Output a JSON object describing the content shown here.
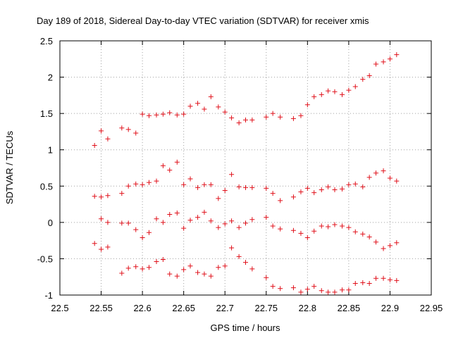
{
  "chart_data": {
    "type": "scatter",
    "title": "Day 189 of 2018, Sidereal Day-to-day VTEC variation (SDTVAR) for receiver xmis",
    "xlabel": "GPS time / hours",
    "ylabel": "SDTVAR / TECUs",
    "xlim": [
      22.5,
      22.95
    ],
    "ylim": [
      -1,
      2.5
    ],
    "xticks": [
      "22.5",
      "22.55",
      "22.6",
      "22.65",
      "22.7",
      "22.75",
      "22.8",
      "22.85",
      "22.9",
      "22.95"
    ],
    "yticks": [
      "-1",
      "-0.5",
      "0",
      "0.5",
      "1",
      "1.5",
      "2",
      "2.5"
    ],
    "grid": true,
    "marker": "+",
    "color": "#e0101a",
    "series": [
      {
        "name": "upper",
        "x": [
          22.542,
          22.55,
          22.558,
          22.575,
          22.583,
          22.592,
          22.6,
          22.608,
          22.617,
          22.625,
          22.633,
          22.642,
          22.65,
          22.658,
          22.667,
          22.675,
          22.683,
          22.692,
          22.7,
          22.708,
          22.717,
          22.725,
          22.733,
          22.75,
          22.758,
          22.767,
          22.783,
          22.792,
          22.8,
          22.808,
          22.817,
          22.825,
          22.833,
          22.842,
          22.85,
          22.858,
          22.867,
          22.875,
          22.883,
          22.892,
          22.9,
          22.908
        ],
        "y": [
          1.06,
          1.26,
          1.15,
          1.3,
          1.28,
          1.23,
          1.49,
          1.47,
          1.48,
          1.49,
          1.51,
          1.48,
          1.49,
          1.6,
          1.64,
          1.56,
          1.73,
          1.59,
          1.52,
          1.44,
          1.37,
          1.41,
          1.41,
          1.45,
          1.5,
          1.45,
          1.43,
          1.47,
          1.62,
          1.73,
          1.76,
          1.81,
          1.8,
          1.76,
          1.82,
          1.87,
          1.97,
          2.02,
          2.18,
          2.21,
          2.25,
          2.31
        ]
      },
      {
        "name": "upper-middle",
        "x": [
          22.542,
          22.55,
          22.558,
          22.575,
          22.583,
          22.592,
          22.6,
          22.608,
          22.617,
          22.625,
          22.633,
          22.642,
          22.65,
          22.658,
          22.667,
          22.675,
          22.683,
          22.692,
          22.7,
          22.708,
          22.717,
          22.725,
          22.733,
          22.75,
          22.758,
          22.767,
          22.783,
          22.792,
          22.8,
          22.808,
          22.817,
          22.825,
          22.833,
          22.842,
          22.85,
          22.858,
          22.867,
          22.875,
          22.883,
          22.892,
          22.9,
          22.908
        ],
        "y": [
          0.36,
          0.35,
          0.37,
          0.4,
          0.5,
          0.53,
          0.52,
          0.55,
          0.57,
          0.78,
          0.72,
          0.83,
          0.52,
          0.6,
          0.48,
          0.52,
          0.52,
          0.33,
          0.44,
          0.66,
          0.49,
          0.48,
          0.48,
          0.47,
          0.4,
          0.3,
          0.35,
          0.42,
          0.47,
          0.41,
          0.45,
          0.49,
          0.45,
          0.46,
          0.52,
          0.53,
          0.49,
          0.62,
          0.68,
          0.71,
          0.61,
          0.57
        ]
      },
      {
        "name": "lower-middle",
        "x": [
          22.542,
          22.55,
          22.558,
          22.575,
          22.583,
          22.592,
          22.6,
          22.608,
          22.617,
          22.625,
          22.633,
          22.642,
          22.65,
          22.658,
          22.667,
          22.675,
          22.683,
          22.692,
          22.7,
          22.708,
          22.717,
          22.725,
          22.733,
          22.75,
          22.758,
          22.767,
          22.783,
          22.792,
          22.8,
          22.808,
          22.817,
          22.825,
          22.833,
          22.842,
          22.85,
          22.858,
          22.867,
          22.875,
          22.883,
          22.892,
          22.9,
          22.908
        ],
        "y": [
          -0.29,
          0.05,
          0.0,
          -0.01,
          -0.01,
          -0.1,
          -0.21,
          -0.14,
          0.05,
          0.0,
          0.11,
          0.13,
          -0.08,
          0.03,
          0.07,
          0.14,
          0.02,
          -0.07,
          -0.02,
          0.02,
          -0.07,
          -0.01,
          0.04,
          0.07,
          -0.05,
          -0.09,
          -0.11,
          -0.15,
          -0.21,
          -0.12,
          -0.05,
          -0.06,
          -0.03,
          -0.05,
          -0.07,
          -0.13,
          -0.16,
          -0.2,
          -0.27,
          -0.36,
          -0.32,
          -0.28
        ]
      },
      {
        "name": "lower",
        "x": [
          22.55,
          22.558,
          22.575,
          22.583,
          22.592,
          22.6,
          22.608,
          22.617,
          22.625,
          22.633,
          22.642,
          22.65,
          22.658,
          22.667,
          22.675,
          22.683,
          22.692,
          22.7,
          22.708,
          22.717,
          22.725,
          22.733,
          22.75,
          22.758,
          22.767,
          22.783,
          22.792,
          22.8,
          22.808,
          22.817,
          22.825,
          22.833,
          22.842,
          22.85,
          22.858,
          22.867,
          22.875,
          22.883,
          22.892,
          22.9,
          22.908
        ],
        "y": [
          -0.37,
          -0.34,
          -0.7,
          -0.63,
          -0.61,
          -0.64,
          -0.62,
          -0.54,
          -0.51,
          -0.71,
          -0.74,
          -0.65,
          -0.6,
          -0.69,
          -0.71,
          -0.74,
          -0.62,
          -0.6,
          -0.35,
          -0.47,
          -0.55,
          -0.64,
          -0.76,
          -0.88,
          -0.91,
          -0.9,
          -0.96,
          -0.92,
          -0.88,
          -0.94,
          -0.96,
          -0.96,
          -0.93,
          -0.93,
          -0.84,
          -0.83,
          -0.84,
          -0.77,
          -0.77,
          -0.79,
          -0.8
        ]
      }
    ]
  }
}
